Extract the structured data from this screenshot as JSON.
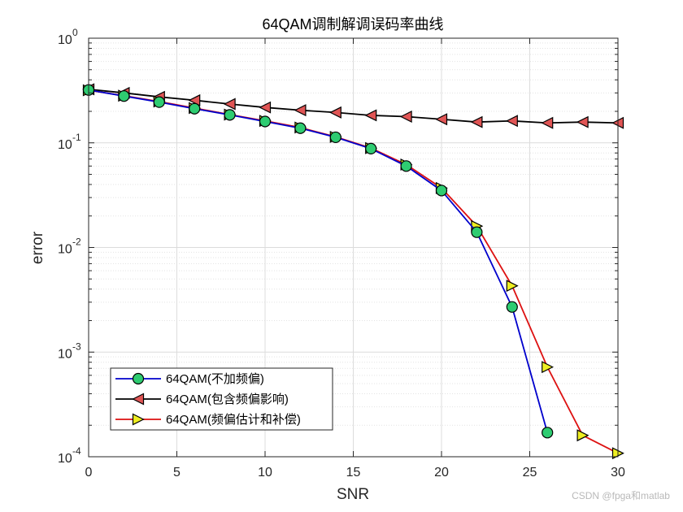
{
  "chart_data": {
    "type": "line",
    "title": "64QAM调制解调误码率曲线",
    "xlabel": "SNR",
    "ylabel": "error",
    "xlim": [
      0,
      30
    ],
    "ylim": [
      0.0001,
      1
    ],
    "yscale": "log",
    "grid": true,
    "minor_grid": true,
    "legend_position": "bottom-left",
    "x_ticks": [
      "0",
      "5",
      "10",
      "15",
      "20",
      "25",
      "30"
    ],
    "y_ticks": [
      {
        "base": "10",
        "exp": "0"
      },
      {
        "base": "10",
        "exp": "-1"
      },
      {
        "base": "10",
        "exp": "-2"
      },
      {
        "base": "10",
        "exp": "-3"
      },
      {
        "base": "10",
        "exp": "-4"
      }
    ],
    "series": [
      {
        "name": "64QAM(不加频偏)",
        "color": "#0000cc",
        "marker": "circle",
        "marker_color": "#2ecc71",
        "x": [
          0,
          2,
          4,
          6,
          8,
          10,
          12,
          14,
          16,
          18,
          20,
          22,
          24,
          26
        ],
        "values": [
          0.32,
          0.28,
          0.245,
          0.212,
          0.185,
          0.16,
          0.138,
          0.113,
          0.088,
          0.06,
          0.035,
          0.014,
          0.0027,
          0.00017
        ]
      },
      {
        "name": "64QAM(包含频偏影响)",
        "color": "#000000",
        "marker": "triangle-left",
        "marker_color": "#e05555",
        "x": [
          0,
          2,
          4,
          6,
          8,
          10,
          12,
          14,
          16,
          18,
          20,
          22,
          24,
          26,
          28,
          30
        ],
        "values": [
          0.325,
          0.3,
          0.275,
          0.255,
          0.235,
          0.218,
          0.205,
          0.195,
          0.183,
          0.178,
          0.168,
          0.158,
          0.162,
          0.155,
          0.158,
          0.155
        ]
      },
      {
        "name": "64QAM(频偏估计和补偿)",
        "color": "#dd1111",
        "marker": "triangle-right",
        "marker_color": "#eeee22",
        "x": [
          0,
          2,
          4,
          6,
          8,
          10,
          12,
          14,
          16,
          18,
          20,
          22,
          24,
          26,
          28,
          30
        ],
        "values": [
          0.318,
          0.282,
          0.248,
          0.215,
          0.186,
          0.162,
          0.14,
          0.114,
          0.089,
          0.062,
          0.037,
          0.016,
          0.0043,
          0.00072,
          0.00016,
          0.000108
        ]
      }
    ]
  },
  "watermark": "CSDN @fpga和matlab"
}
